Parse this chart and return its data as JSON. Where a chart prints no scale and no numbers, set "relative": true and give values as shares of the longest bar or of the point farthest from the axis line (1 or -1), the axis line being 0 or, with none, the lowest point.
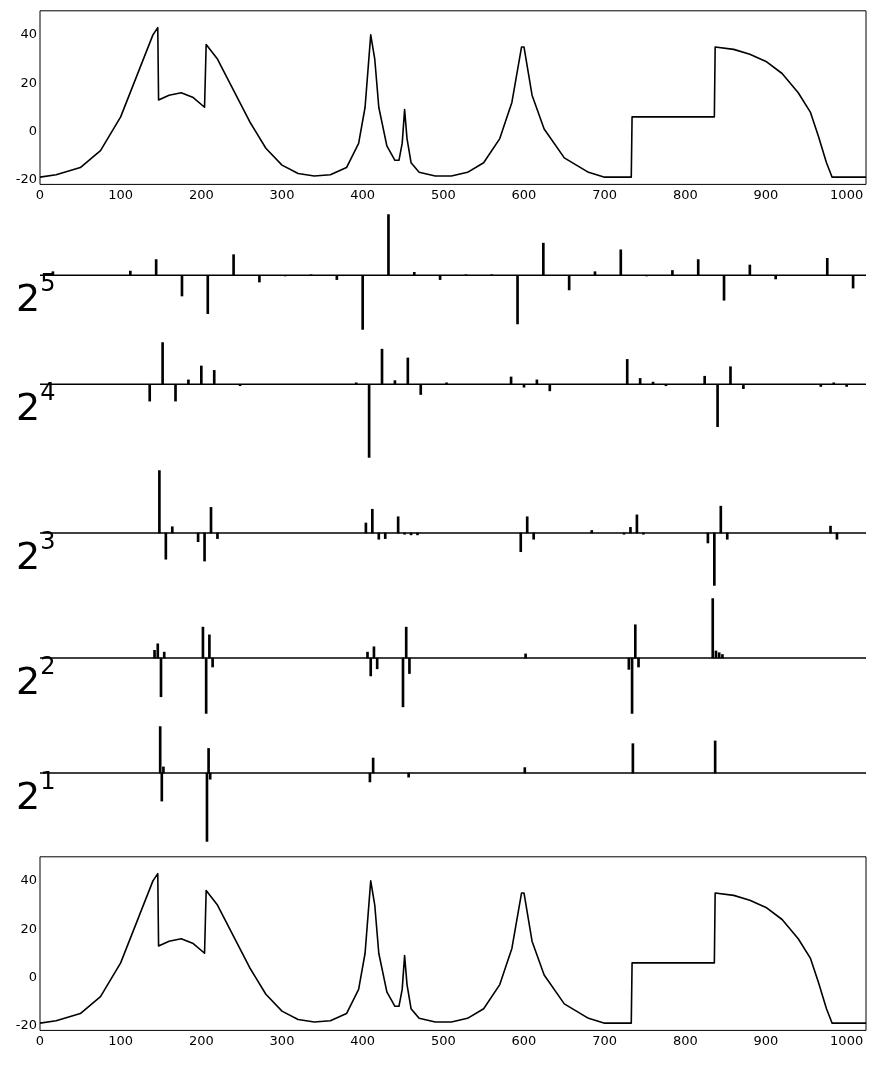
{
  "chart_data": [
    {
      "type": "line",
      "x": [
        0,
        20,
        50,
        75,
        100,
        120,
        140,
        146,
        147,
        160,
        175,
        190,
        204,
        206,
        220,
        240,
        260,
        280,
        300,
        320,
        340,
        360,
        380,
        395,
        403,
        410,
        415,
        420,
        430,
        440,
        445,
        449,
        452,
        455,
        460,
        470,
        490,
        510,
        530,
        550,
        570,
        585,
        597,
        600,
        610,
        625,
        650,
        680,
        700,
        733,
        734,
        836,
        837,
        860,
        880,
        900,
        920,
        940,
        955,
        965,
        975,
        982,
        1000,
        1024
      ],
      "series": [
        {
          "color": "#000000",
          "values": [
            -19,
            -18,
            -15,
            -8,
            6,
            23,
            40,
            43,
            13,
            15,
            16,
            14,
            10,
            36,
            30,
            17,
            4,
            -7,
            -14,
            -17.5,
            -18.5,
            -18,
            -15,
            -5,
            10,
            40,
            30,
            10,
            -6,
            -12,
            -12,
            -5,
            9,
            -3,
            -13,
            -17,
            -18.5,
            -18.5,
            -17,
            -13,
            -3,
            12,
            35,
            35,
            15,
            1,
            -11,
            -17,
            -19,
            -19,
            6,
            6,
            35,
            34,
            32,
            29,
            24,
            16,
            8,
            -2,
            -13,
            -19,
            -19,
            -19
          ]
        }
      ],
      "xlim": [
        0,
        1024
      ],
      "xticks": [
        0,
        100,
        200,
        300,
        400,
        500,
        600,
        700,
        800,
        900,
        1000
      ],
      "ylim": [
        -22,
        50
      ],
      "yticks": [
        -20,
        0,
        20,
        40
      ],
      "grid": false,
      "marker": "none",
      "legend": false
    },
    {
      "type": "bar",
      "relative": true,
      "ylabel": "2$^{5}$",
      "x": [
        16,
        112,
        144,
        176,
        208,
        240,
        272,
        304,
        336,
        368,
        400,
        432,
        464,
        496,
        528,
        560,
        592,
        624,
        656,
        688,
        720,
        752,
        784,
        816,
        848,
        880,
        912,
        976,
        1008
      ],
      "series": [
        {
          "color": "#000000",
          "values": [
            0.06,
            0.07,
            0.26,
            -0.34,
            -0.63,
            0.34,
            -0.11,
            -0.01,
            0.01,
            -0.07,
            -0.89,
            1,
            0.05,
            -0.07,
            0.01,
            0.01,
            -0.8,
            0.53,
            -0.24,
            0.06,
            0.42,
            -0.01,
            0.08,
            0.26,
            -0.41,
            0.17,
            -0.06,
            0.28,
            -0.21
          ]
        }
      ],
      "xlim": [
        0,
        1024
      ],
      "xticks": [
        0,
        100,
        200,
        300,
        400,
        500,
        600,
        700,
        800,
        900,
        1000
      ],
      "tick_labels": false,
      "legend": false
    },
    {
      "type": "bar",
      "relative": true,
      "ylabel": "2$^{4}$",
      "x": [
        136,
        152,
        168,
        184,
        200,
        216,
        248,
        392,
        408,
        424,
        440,
        456,
        472,
        504,
        584,
        600,
        616,
        632,
        728,
        744,
        760,
        776,
        824,
        840,
        856,
        872,
        968,
        984,
        1000
      ],
      "series": [
        {
          "color": "#000000",
          "values": [
            -0.23,
            0.57,
            -0.23,
            0.06,
            0.25,
            0.19,
            -0.02,
            0.02,
            -1,
            0.48,
            0.05,
            0.36,
            -0.14,
            0.02,
            0.1,
            -0.04,
            0.06,
            -0.09,
            0.34,
            0.08,
            0.03,
            -0.02,
            0.11,
            -0.58,
            0.24,
            -0.06,
            -0.03,
            0.02,
            -0.03
          ]
        }
      ],
      "xlim": [
        0,
        1024
      ],
      "xticks": [
        0,
        100,
        200,
        300,
        400,
        500,
        600,
        700,
        800,
        900,
        1000
      ],
      "tick_labels": false,
      "legend": false
    },
    {
      "type": "bar",
      "relative": true,
      "ylabel": "2$^{3}$",
      "x": [
        148,
        156,
        164,
        196,
        204,
        212,
        220,
        404,
        412,
        420,
        428,
        444,
        452,
        460,
        468,
        596,
        604,
        612,
        684,
        724,
        732,
        740,
        748,
        828,
        836,
        844,
        852,
        980,
        988
      ],
      "series": [
        {
          "color": "#000000",
          "values": [
            1,
            -0.42,
            0.1,
            -0.14,
            -0.45,
            0.41,
            -0.09,
            0.16,
            0.38,
            -0.1,
            -0.09,
            0.26,
            -0.02,
            -0.03,
            -0.03,
            -0.3,
            0.26,
            -0.1,
            0.04,
            -0.02,
            0.09,
            0.29,
            -0.02,
            -0.16,
            -0.84,
            0.43,
            -0.1,
            0.11,
            -0.1
          ]
        }
      ],
      "xlim": [
        0,
        1024
      ],
      "xticks": [
        0,
        100,
        200,
        300,
        400,
        500,
        600,
        700,
        800,
        900,
        1000
      ],
      "tick_labels": false,
      "legend": false
    },
    {
      "type": "bar",
      "relative": true,
      "ylabel": "2$^{2}$",
      "x": [
        142,
        146,
        150,
        154,
        202,
        206,
        210,
        214,
        406,
        410,
        414,
        418,
        450,
        454,
        458,
        602,
        730,
        734,
        738,
        742,
        834,
        838,
        842,
        846
      ],
      "series": [
        {
          "color": "#000000",
          "values": [
            0.13,
            0.24,
            -0.65,
            0.1,
            0.52,
            -0.93,
            0.39,
            -0.15,
            0.1,
            -0.3,
            0.19,
            -0.18,
            -0.82,
            0.52,
            -0.26,
            0.07,
            -0.19,
            -0.93,
            0.56,
            -0.15,
            1,
            0.12,
            0.09,
            0.06
          ]
        }
      ],
      "xlim": [
        0,
        1024
      ],
      "xticks": [
        0,
        100,
        200,
        300,
        400,
        500,
        600,
        700,
        800,
        900,
        1000
      ],
      "tick_labels": false,
      "legend": false
    },
    {
      "type": "bar",
      "relative": true,
      "ylabel": "2$^{1}$",
      "x": [
        149,
        151,
        153,
        207,
        209,
        211,
        409,
        413,
        457,
        601,
        735,
        837
      ],
      "series": [
        {
          "color": "#000000",
          "values": [
            0.68,
            -0.41,
            0.09,
            -1,
            0.36,
            -0.09,
            -0.13,
            0.22,
            -0.06,
            0.08,
            0.43,
            0.47
          ]
        }
      ],
      "xlim": [
        0,
        1024
      ],
      "xticks": [
        0,
        100,
        200,
        300,
        400,
        500,
        600,
        700,
        800,
        900,
        1000
      ],
      "tick_labels": false,
      "legend": false
    },
    {
      "type": "line",
      "x": [
        0,
        20,
        50,
        75,
        100,
        120,
        140,
        146,
        147,
        160,
        175,
        190,
        204,
        206,
        220,
        240,
        260,
        280,
        300,
        320,
        340,
        360,
        380,
        395,
        403,
        410,
        415,
        420,
        430,
        440,
        445,
        449,
        452,
        455,
        460,
        470,
        490,
        510,
        530,
        550,
        570,
        585,
        597,
        600,
        610,
        625,
        650,
        680,
        700,
        733,
        734,
        836,
        837,
        860,
        880,
        900,
        920,
        940,
        955,
        965,
        975,
        982,
        1000,
        1024
      ],
      "series": [
        {
          "color": "#000000",
          "values": [
            -19,
            -18,
            -15,
            -8,
            6,
            23,
            40,
            43,
            13,
            15,
            16,
            14,
            10,
            36,
            30,
            17,
            4,
            -7,
            -14,
            -17.5,
            -18.5,
            -18,
            -15,
            -5,
            10,
            40,
            30,
            10,
            -6,
            -12,
            -12,
            -5,
            9,
            -3,
            -13,
            -17,
            -18.5,
            -18.5,
            -17,
            -13,
            -3,
            12,
            35,
            35,
            15,
            1,
            -11,
            -17,
            -19,
            -19,
            6,
            6,
            35,
            34,
            32,
            29,
            24,
            16,
            8,
            -2,
            -13,
            -19,
            -19,
            -19
          ]
        }
      ],
      "xlim": [
        0,
        1024
      ],
      "xticks": [
        0,
        100,
        200,
        300,
        400,
        500,
        600,
        700,
        800,
        900,
        1000
      ],
      "ylim": [
        -22,
        50
      ],
      "yticks": [
        -20,
        0,
        20,
        40
      ],
      "grid": false,
      "marker": "none",
      "legend": false
    }
  ]
}
